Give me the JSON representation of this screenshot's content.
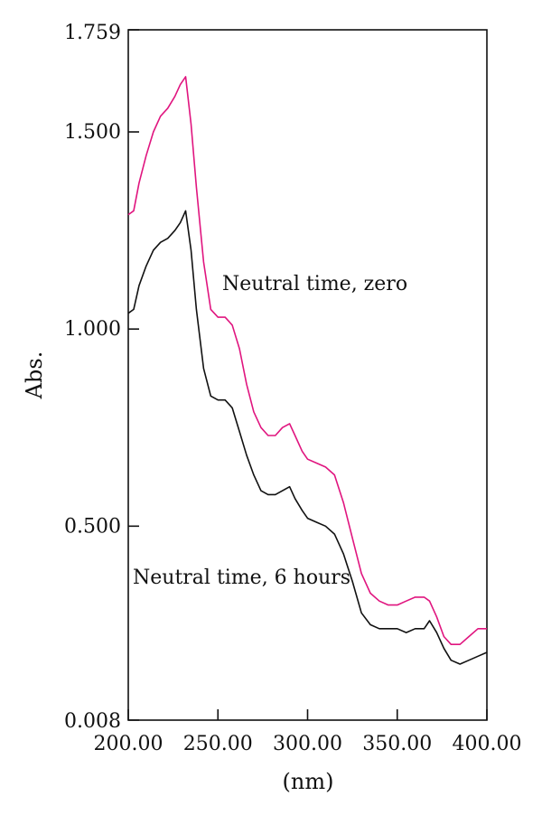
{
  "chart_data": {
    "type": "line",
    "title": "",
    "xlabel": "(nm)",
    "ylabel": "Abs.",
    "xlim": [
      200,
      400
    ],
    "ylim": [
      0.008,
      1.759
    ],
    "xticks": [
      "200.00",
      "250.00",
      "300.00",
      "350.00",
      "400.00"
    ],
    "yticks": [
      "1.759",
      "1.500",
      "1.000",
      "0.500",
      "0.008"
    ],
    "grid": false,
    "annotations": [
      "Neutral time, zero",
      "Neutral time, 6 hours"
    ],
    "colors": {
      "zero": "#e0157f",
      "six_hours": "#111111"
    },
    "series": [
      {
        "x": [
          200,
          203,
          206,
          210,
          214,
          218,
          222,
          226,
          229,
          232,
          235,
          238,
          242,
          246,
          250,
          254,
          258,
          262,
          266,
          270,
          274,
          278,
          282,
          286,
          290,
          293,
          297,
          300,
          305,
          310,
          315,
          320,
          325,
          330,
          335,
          340,
          345,
          350,
          355,
          360,
          365,
          368,
          372,
          376,
          380,
          385,
          390,
          395,
          400
        ],
        "y": [
          1.29,
          1.3,
          1.37,
          1.44,
          1.5,
          1.54,
          1.56,
          1.59,
          1.62,
          1.64,
          1.52,
          1.36,
          1.17,
          1.05,
          1.03,
          1.03,
          1.01,
          0.95,
          0.86,
          0.79,
          0.75,
          0.73,
          0.73,
          0.75,
          0.76,
          0.73,
          0.69,
          0.67,
          0.66,
          0.65,
          0.63,
          0.56,
          0.47,
          0.38,
          0.33,
          0.31,
          0.3,
          0.3,
          0.31,
          0.32,
          0.32,
          0.31,
          0.27,
          0.22,
          0.2,
          0.2,
          0.22,
          0.24,
          0.24
        ]
      },
      {
        "x": [
          200,
          203,
          206,
          210,
          214,
          218,
          222,
          226,
          229,
          232,
          235,
          238,
          242,
          246,
          250,
          254,
          258,
          262,
          266,
          270,
          274,
          278,
          282,
          286,
          290,
          293,
          297,
          300,
          305,
          310,
          315,
          320,
          325,
          330,
          335,
          340,
          345,
          350,
          355,
          360,
          365,
          368,
          372,
          376,
          380,
          385,
          390,
          395,
          400
        ],
        "y": [
          1.04,
          1.05,
          1.11,
          1.16,
          1.2,
          1.22,
          1.23,
          1.25,
          1.27,
          1.3,
          1.2,
          1.05,
          0.9,
          0.83,
          0.82,
          0.82,
          0.8,
          0.74,
          0.68,
          0.63,
          0.59,
          0.58,
          0.58,
          0.59,
          0.6,
          0.57,
          0.54,
          0.52,
          0.51,
          0.5,
          0.48,
          0.43,
          0.36,
          0.28,
          0.25,
          0.24,
          0.24,
          0.24,
          0.23,
          0.24,
          0.24,
          0.26,
          0.23,
          0.19,
          0.16,
          0.15,
          0.16,
          0.17,
          0.18
        ]
      }
    ]
  }
}
